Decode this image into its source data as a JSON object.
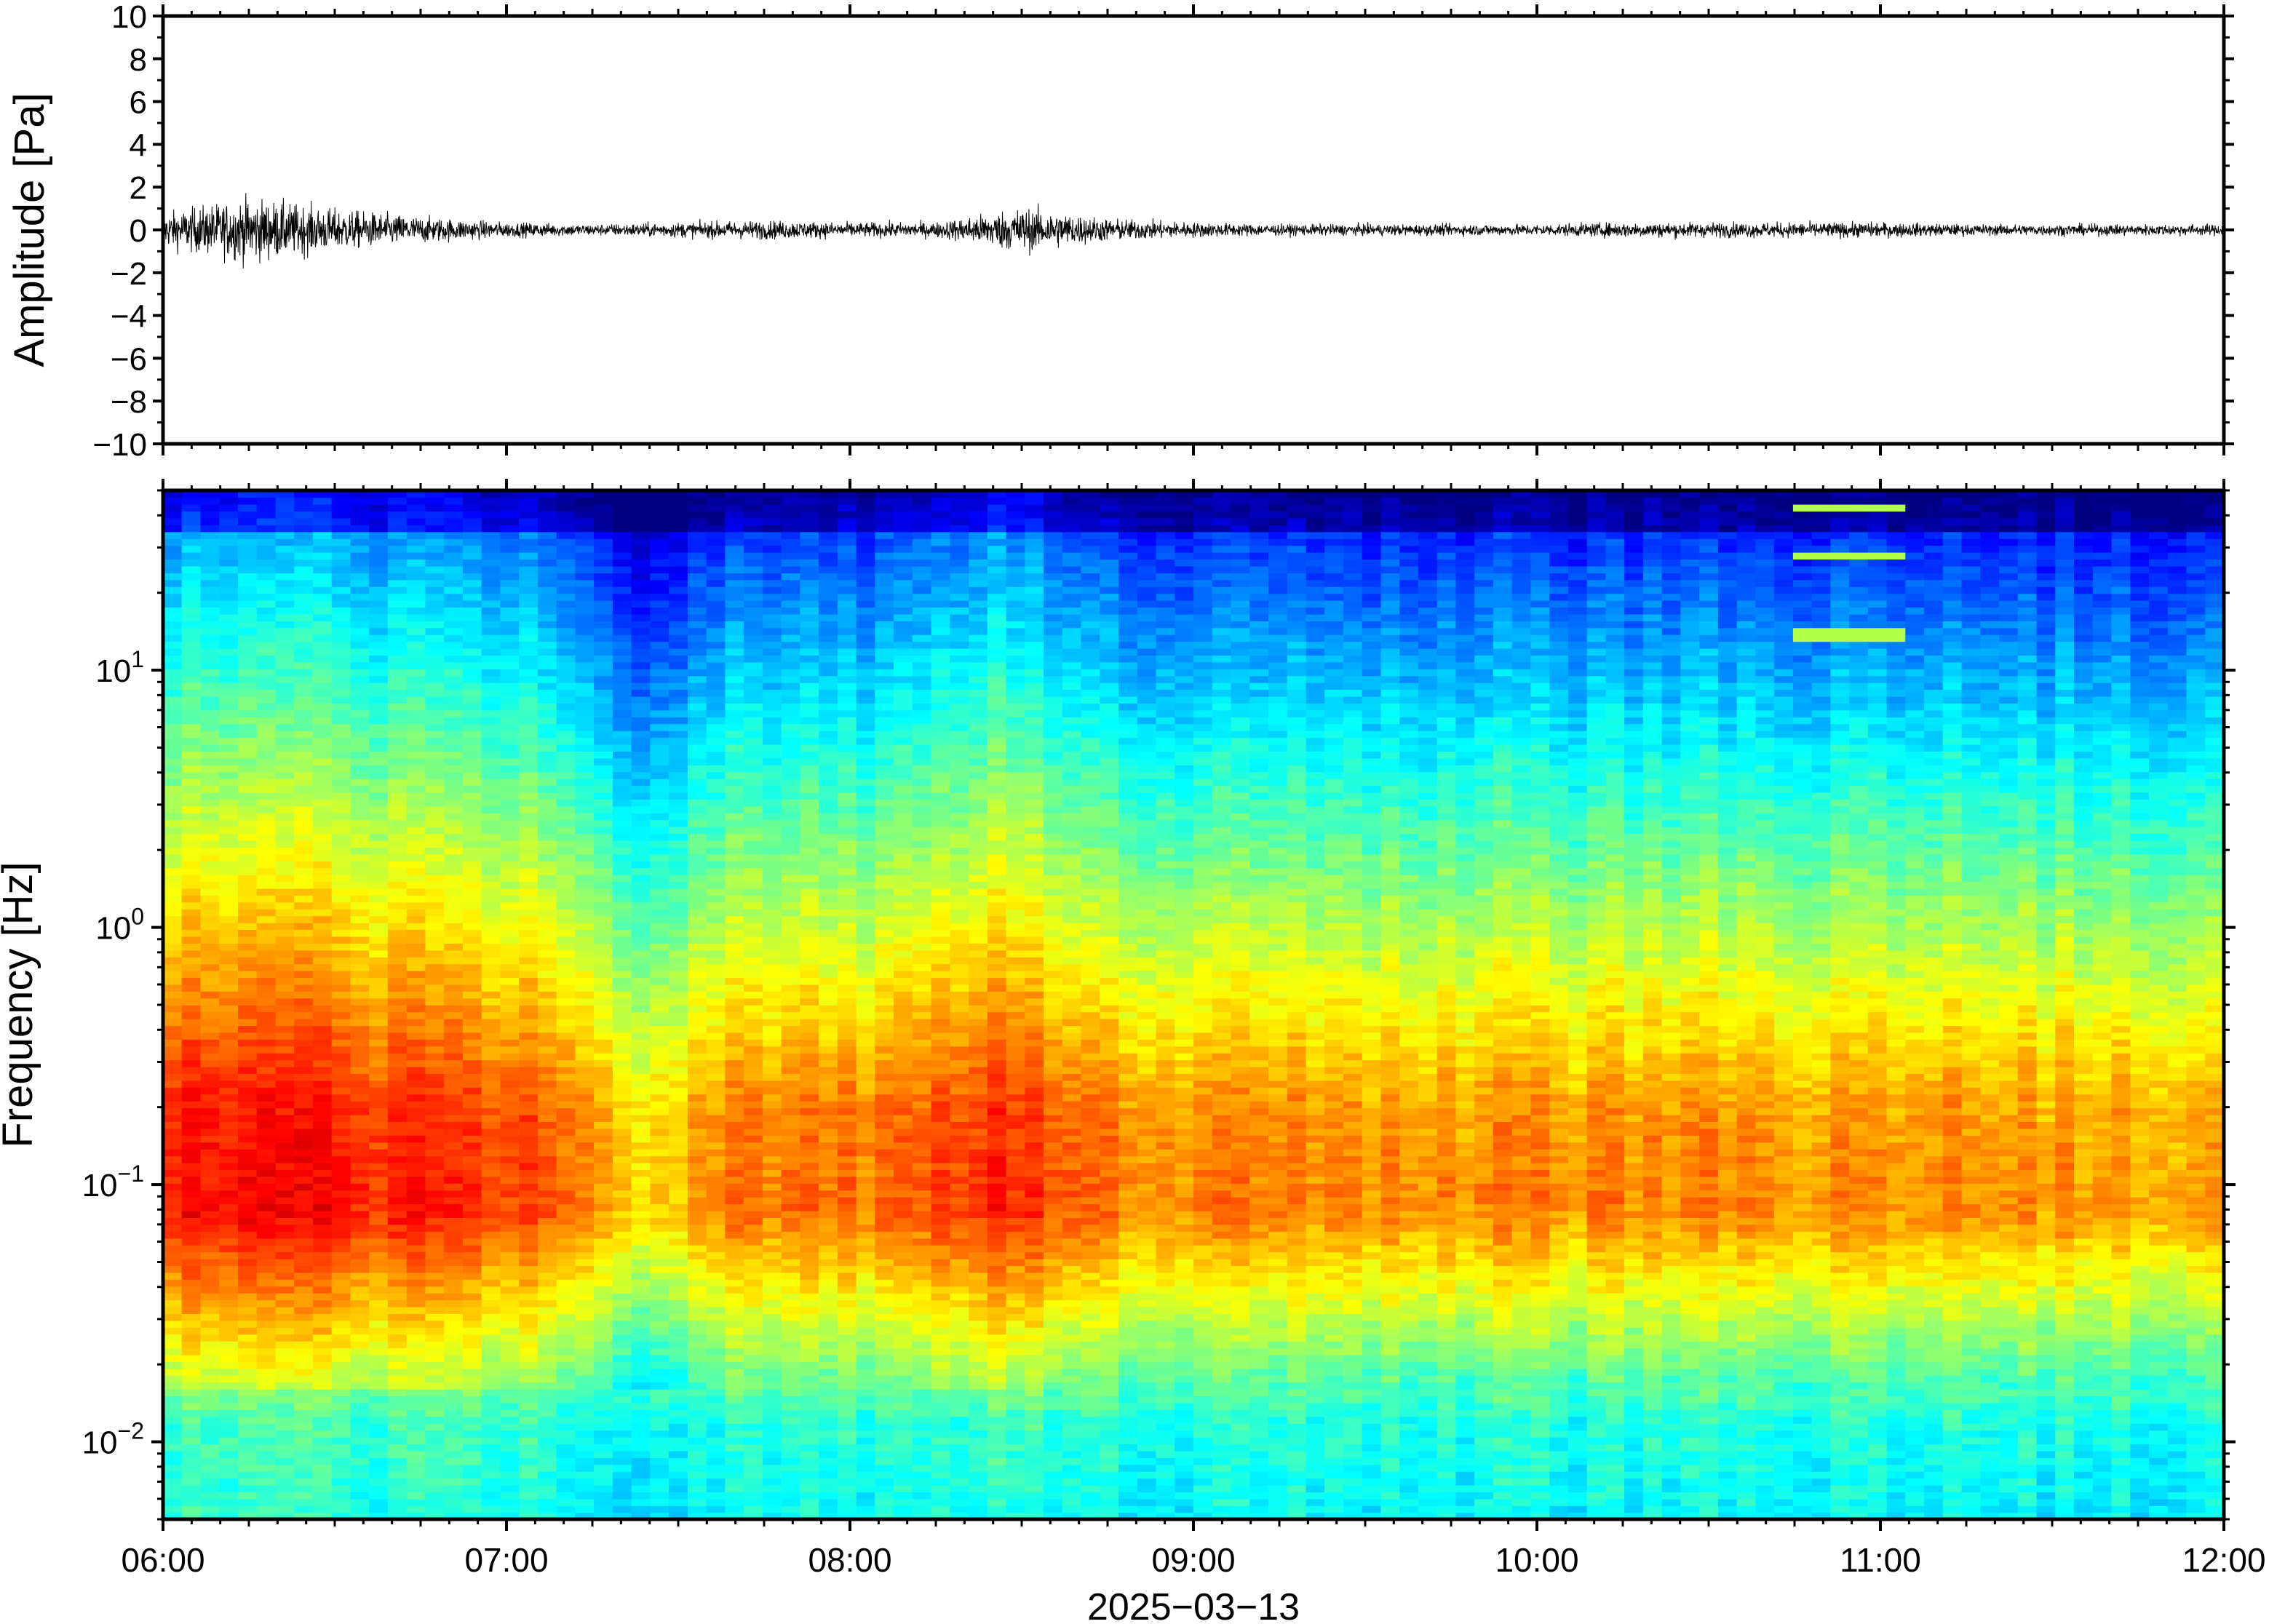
{
  "chart_data": [
    {
      "type": "line",
      "title": "",
      "ylabel": "Amplitude [Pa]",
      "xlabel": "",
      "ylim": [
        -10,
        10
      ],
      "yticks": [
        -10,
        -8,
        -6,
        -4,
        -2,
        0,
        2,
        4,
        6,
        8,
        10
      ],
      "ytick_labels": [
        "−10",
        "−8",
        "−6",
        "−4",
        "−2",
        "0",
        "2",
        "4",
        "6",
        "8",
        "10"
      ],
      "xlim": [
        "06:00",
        "12:00"
      ],
      "series": [
        {
          "times": [
            "06:00",
            "06:15",
            "06:30",
            "06:45",
            "07:00",
            "07:15",
            "07:30",
            "07:45",
            "08:00",
            "08:15",
            "08:30",
            "08:45",
            "09:00",
            "09:15",
            "09:30",
            "09:45",
            "10:00",
            "10:15",
            "10:30",
            "10:45",
            "11:00",
            "11:15",
            "11:30",
            "11:45",
            "12:00"
          ],
          "peak_amplitude": [
            0.9,
            1.7,
            1.1,
            0.7,
            0.4,
            0.3,
            0.4,
            0.5,
            0.4,
            0.4,
            1.2,
            0.6,
            0.4,
            0.3,
            0.3,
            0.3,
            0.3,
            0.4,
            0.4,
            0.4,
            0.4,
            0.3,
            0.3,
            0.3,
            0.3
          ]
        }
      ],
      "grid": false
    },
    {
      "type": "heatmap",
      "title": "",
      "ylabel": "Frequency [Hz]",
      "xlabel": "2025−03−13",
      "yscale": "log",
      "ylim": [
        0.005,
        50
      ],
      "yticks": [
        0.01,
        0.1,
        1,
        10
      ],
      "ytick_labels": [
        {
          "base": "10",
          "exp": "−2"
        },
        {
          "base": "10",
          "exp": "−1"
        },
        {
          "base": "10",
          "exp": "0"
        },
        {
          "base": "10",
          "exp": "1"
        }
      ],
      "xlim": [
        "06:00",
        "12:00"
      ],
      "xtick_labels": [
        "06:00",
        "07:00",
        "08:00",
        "09:00",
        "10:00",
        "11:00",
        "12:00"
      ],
      "colormap": "jet",
      "grid": false
    }
  ]
}
